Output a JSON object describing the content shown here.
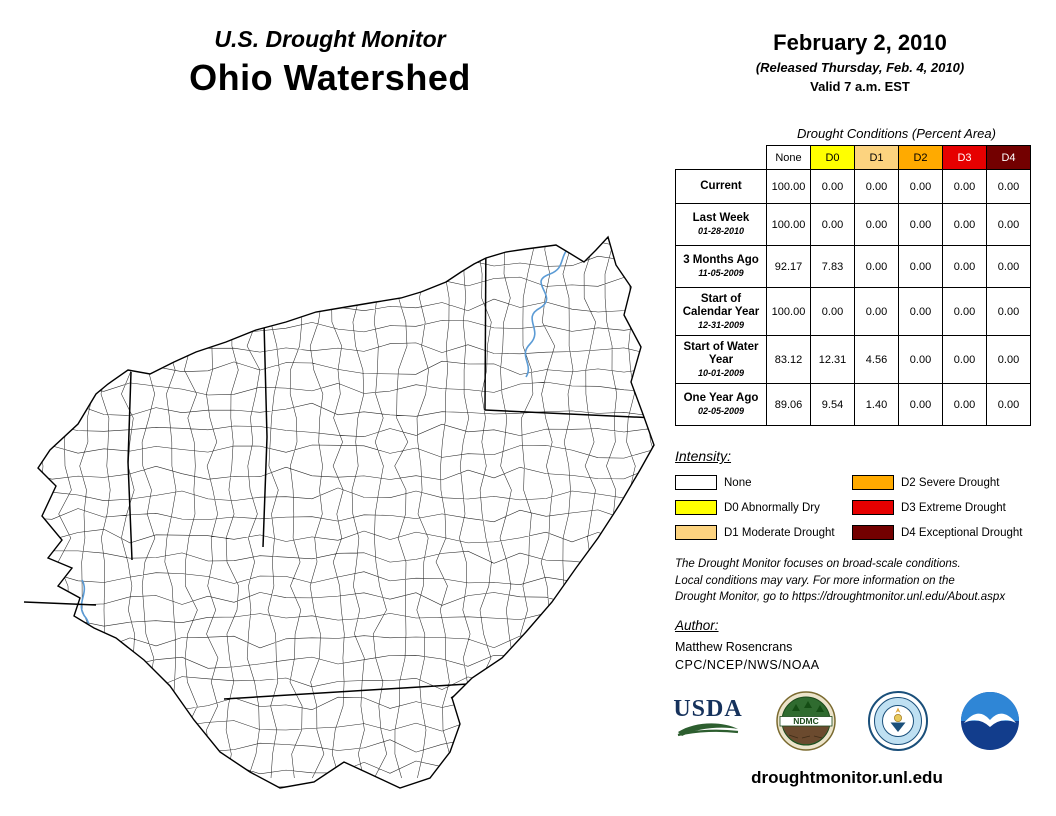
{
  "header": {
    "title": "U.S. Drought Monitor",
    "region": "Ohio Watershed",
    "date": "February 2, 2010",
    "released": "(Released Thursday, Feb. 4, 2010)",
    "valid": "Valid 7 a.m. EST"
  },
  "table": {
    "title": "Drought Conditions (Percent Area)",
    "columns": [
      {
        "label": "None",
        "bg": "#ffffff",
        "fg": "#000000"
      },
      {
        "label": "D0",
        "bg": "#ffff00",
        "fg": "#000000"
      },
      {
        "label": "D1",
        "bg": "#fcd37f",
        "fg": "#000000"
      },
      {
        "label": "D2",
        "bg": "#ffaa00",
        "fg": "#000000"
      },
      {
        "label": "D3",
        "bg": "#e60000",
        "fg": "#ffffff"
      },
      {
        "label": "D4",
        "bg": "#730000",
        "fg": "#ffffff"
      }
    ],
    "rows": [
      {
        "label": "Current",
        "date": "",
        "values": [
          "100.00",
          "0.00",
          "0.00",
          "0.00",
          "0.00",
          "0.00"
        ]
      },
      {
        "label": "Last Week",
        "date": "01-28-2010",
        "values": [
          "100.00",
          "0.00",
          "0.00",
          "0.00",
          "0.00",
          "0.00"
        ]
      },
      {
        "label": "3 Months Ago",
        "date": "11-05-2009",
        "values": [
          "92.17",
          "7.83",
          "0.00",
          "0.00",
          "0.00",
          "0.00"
        ]
      },
      {
        "label": "Start of Calendar Year",
        "date": "12-31-2009",
        "values": [
          "100.00",
          "0.00",
          "0.00",
          "0.00",
          "0.00",
          "0.00"
        ]
      },
      {
        "label": "Start of Water Year",
        "date": "10-01-2009",
        "values": [
          "83.12",
          "12.31",
          "4.56",
          "0.00",
          "0.00",
          "0.00"
        ]
      },
      {
        "label": "One Year Ago",
        "date": "02-05-2009",
        "values": [
          "89.06",
          "9.54",
          "1.40",
          "0.00",
          "0.00",
          "0.00"
        ]
      }
    ]
  },
  "legend": {
    "title": "Intensity:",
    "items": [
      {
        "label": "None",
        "color": "#ffffff"
      },
      {
        "label": "D0 Abnormally Dry",
        "color": "#ffff00"
      },
      {
        "label": "D1 Moderate Drought",
        "color": "#fcd37f"
      },
      {
        "label": "D2 Severe Drought",
        "color": "#ffaa00"
      },
      {
        "label": "D3 Extreme Drought",
        "color": "#e60000"
      },
      {
        "label": "D4 Exceptional Drought",
        "color": "#730000"
      }
    ]
  },
  "disclaimer": "The Drought Monitor focuses on broad-scale conditions.\nLocal conditions may vary. For more information on the\nDrought Monitor, go to https://droughtmonitor.unl.edu/About.aspx",
  "author": {
    "heading": "Author:",
    "name": "Matthew Rosencrans",
    "org": "CPC/NCEP/NWS/NOAA"
  },
  "logos": {
    "usda": "USDA",
    "ndmc": "NDMC"
  },
  "footer": {
    "url": "droughtmonitor.unl.edu"
  },
  "map": {
    "fill": "#ffffff",
    "boundary_color": "#000000",
    "river_color": "#5b9bd5"
  }
}
